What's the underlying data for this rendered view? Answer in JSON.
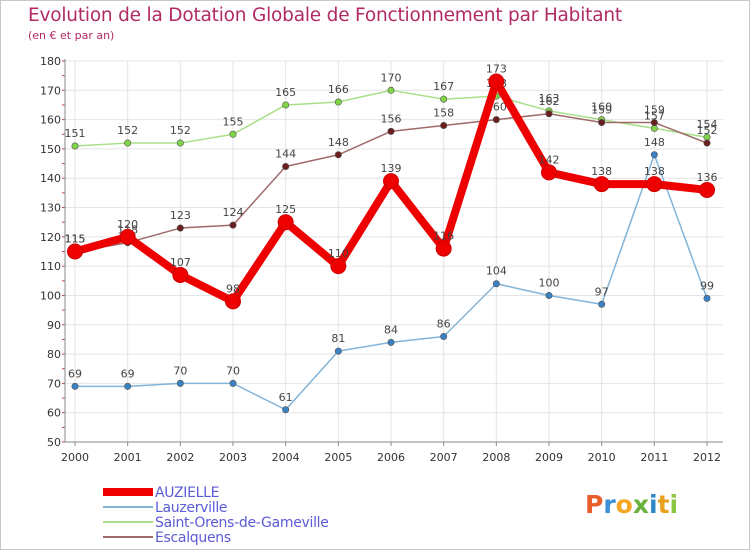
{
  "header": {
    "title": "Evolution de la Dotation Globale de Fonctionnement par Habitant",
    "subtitle": "(en € et par an)"
  },
  "logo": {
    "text": "Proxiti"
  },
  "colors": {
    "title": "#b02a63",
    "auzielle": "#ee0000",
    "lauzerville_line": "#82b3d8",
    "lauzerville_marker": "#3a82c4",
    "saint_orens_line": "#a8e08a",
    "saint_orens_marker": "#7fd448",
    "escalquens_line": "#a06a6a",
    "escalquens_marker": "#6a1f1f",
    "legend_text": "#5b5bd6",
    "grid": "#e4e4e4",
    "axis": "#888888"
  },
  "chart_data": {
    "type": "line",
    "title": "Evolution de la Dotation Globale de Fonctionnement par Habitant",
    "subtitle": "(en € et par an)",
    "xlabel": "",
    "ylabel": "",
    "categories": [
      "2000",
      "2001",
      "2002",
      "2003",
      "2004",
      "2005",
      "2006",
      "2007",
      "2008",
      "2009",
      "2010",
      "2011",
      "2012"
    ],
    "yticks": [
      50,
      60,
      70,
      80,
      90,
      100,
      110,
      120,
      130,
      140,
      150,
      160,
      170,
      180
    ],
    "ylim": [
      50,
      180
    ],
    "grid": true,
    "legend_position": "bottom-left",
    "series": [
      {
        "name": "Lauzerville",
        "key": "lauzerville",
        "values": [
          69,
          69,
          70,
          70,
          61,
          81,
          84,
          86,
          104,
          100,
          97,
          148,
          99
        ],
        "labels": [
          "69",
          "69",
          "70",
          "70",
          "61",
          "81",
          "84",
          "86",
          "104",
          "100",
          "97",
          "148",
          "99"
        ]
      },
      {
        "name": "Saint-Orens-de-Gameville",
        "key": "saint_orens",
        "values": [
          151,
          152,
          152,
          155,
          165,
          166,
          170,
          167,
          168,
          163,
          160,
          157,
          154
        ],
        "labels": [
          "151",
          "152",
          "152",
          "155",
          "165",
          "166",
          "170",
          "167",
          "168",
          "163",
          "160",
          "157",
          "154"
        ]
      },
      {
        "name": "Escalquens",
        "key": "escalquens",
        "values": [
          115,
          118,
          123,
          124,
          144,
          148,
          156,
          158,
          160,
          162,
          159,
          159,
          152
        ],
        "labels": [
          "115",
          "118",
          "123",
          "124",
          "144",
          "148",
          "156",
          "158",
          "160",
          "162",
          "159",
          "159",
          "152"
        ]
      },
      {
        "name": "AUZIELLE",
        "key": "auzielle",
        "values": [
          115,
          120,
          107,
          98,
          125,
          110,
          139,
          116,
          173,
          142,
          138,
          138,
          136
        ],
        "labels": [
          "115",
          "120",
          "107",
          "98",
          "125",
          "110",
          "139",
          "116",
          "173",
          "142",
          "138",
          "138",
          "136"
        ]
      }
    ],
    "legend": [
      "AUZIELLE",
      "Lauzerville",
      "Saint-Orens-de-Gameville",
      "Escalquens"
    ]
  }
}
